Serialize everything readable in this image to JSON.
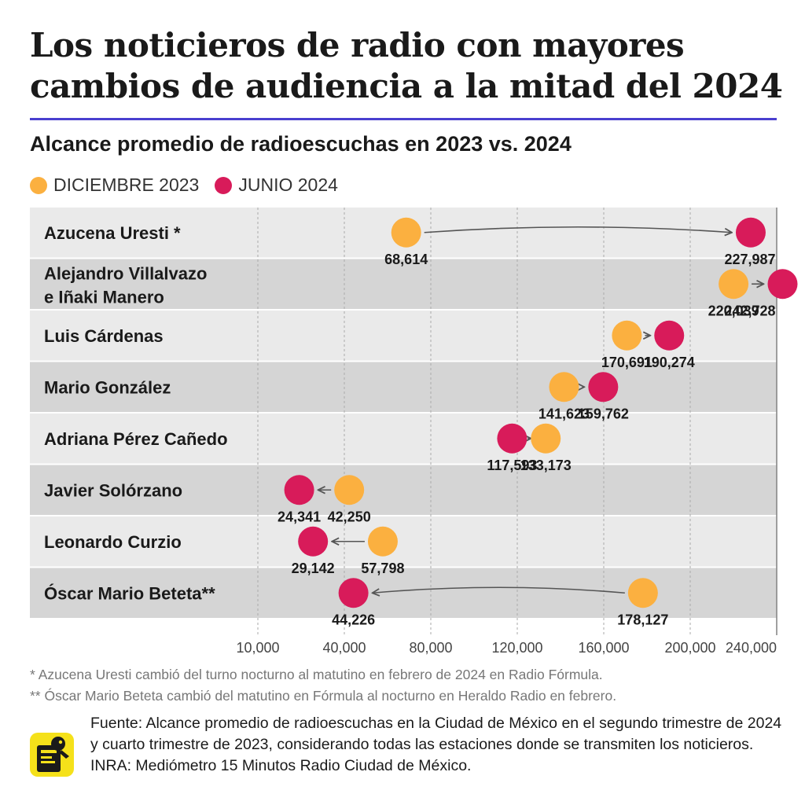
{
  "title": "Los noticieros de radio con mayores cambios de audiencia a la mitad del 2024",
  "subtitle": "Alcance promedio de radioescuchas en 2023 vs. 2024",
  "colors": {
    "dec2023": "#fbb040",
    "jun2024": "#d81b5a",
    "rule": "#4a3fcf",
    "row_light": "#eaeaea",
    "row_dark": "#d5d5d5"
  },
  "chart_data": {
    "type": "dot-arrow",
    "series": [
      {
        "name": "DICIEMBRE 2023"
      },
      {
        "name": "JUNIO 2024"
      }
    ],
    "rows": [
      {
        "name": "Azucena Uresti *",
        "dec2023": 68614,
        "jun2024": 227987,
        "dec_label": "68,614",
        "jun_label": "227,987"
      },
      {
        "name": "Alejandro Villalvazo e Iñaki Manero",
        "dec2023": 220039,
        "jun2024": 242728,
        "dec_label": "220,039",
        "jun_label": "242,728"
      },
      {
        "name": "Luis Cárdenas",
        "dec2023": 170691,
        "jun2024": 190274,
        "dec_label": "170,691",
        "jun_label": "190,274"
      },
      {
        "name": "Mario González",
        "dec2023": 141623,
        "jun2024": 159762,
        "dec_label": "141,623",
        "jun_label": "159,762"
      },
      {
        "name": "Adriana Pérez Cañedo",
        "dec2023": 133173,
        "jun2024": 117593,
        "dec_label": "133,173",
        "jun_label": "117,593"
      },
      {
        "name": "Javier Solórzano",
        "dec2023": 42250,
        "jun2024": 24341,
        "dec_label": "42,250",
        "jun_label": "24,341"
      },
      {
        "name": "Leonardo Curzio",
        "dec2023": 57798,
        "jun2024": 29142,
        "dec_label": "57,798",
        "jun_label": "29,142"
      },
      {
        "name": "Óscar Mario Beteta**",
        "dec2023": 178127,
        "jun2024": 44226,
        "dec_label": "178,127",
        "jun_label": "44,226"
      }
    ],
    "x_ticks": [
      "10,000",
      "40,000",
      "80,000",
      "120,000",
      "160,000",
      "200,000",
      "240,000"
    ],
    "grid": true
  },
  "notes": [
    "* Azucena Uresti cambió del turno nocturno al matutino en febrero de 2024 en Radio Fórmula.",
    "** Óscar Mario Beteta cambió del matutino en Fórmula al nocturno en Heraldo Radio en febrero."
  ],
  "source": "Fuente: Alcance promedio de radioescuchas en la Ciudad de México en el segundo trimestre de 2024 y cuarto trimestre de 2023, considerando todas las estaciones donde se transmiten los noticieros. INRA: Mediómetro 15 Minutos Radio Ciudad de México.",
  "logo_icon": "newspaper-mascot-logo"
}
